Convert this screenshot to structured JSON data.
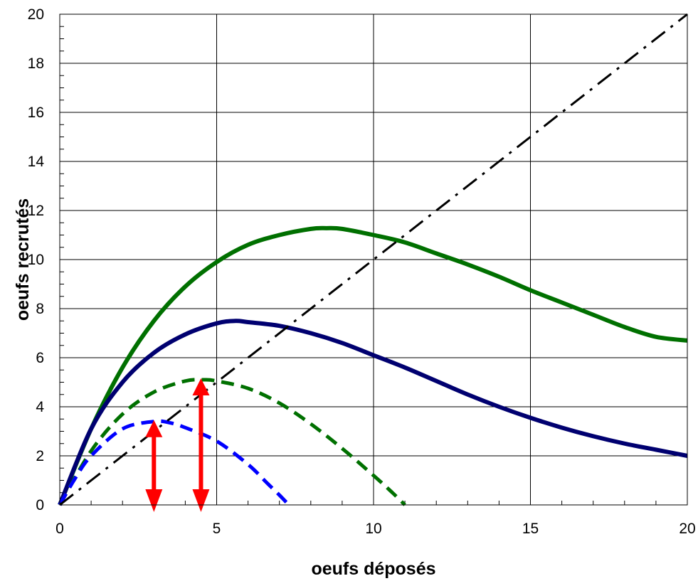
{
  "chart_data": {
    "type": "line",
    "title": "",
    "xlabel": "oeufs déposés",
    "ylabel": "oeufs recrutés",
    "xlim": [
      0,
      20
    ],
    "ylim": [
      0,
      20
    ],
    "x_ticks": [
      0,
      5,
      10,
      15,
      20
    ],
    "y_ticks": [
      0,
      2,
      4,
      6,
      8,
      10,
      12,
      14,
      16,
      18,
      20
    ],
    "grid": true,
    "legend": "none",
    "series": [
      {
        "style": "solid",
        "color": "#007000",
        "points": [
          [
            0,
            0
          ],
          [
            1,
            3.1
          ],
          [
            2,
            5.6
          ],
          [
            3,
            7.5
          ],
          [
            4,
            8.9
          ],
          [
            5,
            9.9
          ],
          [
            6,
            10.6
          ],
          [
            7,
            11.0
          ],
          [
            8,
            11.25
          ],
          [
            8.5,
            11.28
          ],
          [
            9,
            11.25
          ],
          [
            10,
            11.0
          ],
          [
            11,
            10.7
          ],
          [
            12,
            10.25
          ],
          [
            13,
            9.8
          ],
          [
            14,
            9.3
          ],
          [
            15,
            8.75
          ],
          [
            16,
            8.25
          ],
          [
            17,
            7.75
          ],
          [
            18,
            7.25
          ],
          [
            19,
            6.85
          ],
          [
            20,
            6.7
          ]
        ]
      },
      {
        "style": "solid",
        "color": "#000070",
        "points": [
          [
            0,
            0
          ],
          [
            1,
            3.1
          ],
          [
            2,
            5.0
          ],
          [
            3,
            6.2
          ],
          [
            4,
            6.95
          ],
          [
            5,
            7.4
          ],
          [
            5.6,
            7.5
          ],
          [
            6,
            7.45
          ],
          [
            7,
            7.3
          ],
          [
            8,
            7.0
          ],
          [
            9,
            6.6
          ],
          [
            10,
            6.1
          ],
          [
            11,
            5.6
          ],
          [
            12,
            5.05
          ],
          [
            13,
            4.5
          ],
          [
            14,
            4.0
          ],
          [
            15,
            3.55
          ],
          [
            16,
            3.15
          ],
          [
            17,
            2.8
          ],
          [
            18,
            2.5
          ],
          [
            19,
            2.25
          ],
          [
            20,
            2.0
          ]
        ]
      },
      {
        "style": "dashed",
        "color": "#007000",
        "points": [
          [
            0,
            0
          ],
          [
            1,
            2.2
          ],
          [
            2,
            3.7
          ],
          [
            3,
            4.6
          ],
          [
            4,
            5.05
          ],
          [
            4.6,
            5.1
          ],
          [
            5,
            5.05
          ],
          [
            6,
            4.75
          ],
          [
            7,
            4.15
          ],
          [
            8,
            3.3
          ],
          [
            9,
            2.3
          ],
          [
            10,
            1.2
          ],
          [
            10.6,
            0.5
          ],
          [
            11,
            0
          ]
        ]
      },
      {
        "style": "dashed",
        "color": "#0000FF",
        "points": [
          [
            0,
            0
          ],
          [
            0.5,
            1.1
          ],
          [
            1,
            2.0
          ],
          [
            2,
            3.1
          ],
          [
            3,
            3.4
          ],
          [
            3.5,
            3.35
          ],
          [
            4,
            3.15
          ],
          [
            5,
            2.6
          ],
          [
            6,
            1.65
          ],
          [
            6.6,
            0.9
          ],
          [
            7,
            0.4
          ],
          [
            7.3,
            0
          ]
        ]
      },
      {
        "style": "dash-dot",
        "color": "#000000",
        "points": [
          [
            0,
            0
          ],
          [
            20,
            20
          ]
        ]
      }
    ],
    "annotations": [
      {
        "type": "double-arrow",
        "color": "#FF0000",
        "x": 3.0,
        "y_from": 0,
        "y_to": 3.4
      },
      {
        "type": "double-arrow",
        "color": "#FF0000",
        "x": 4.5,
        "y_from": 0,
        "y_to": 5.1
      }
    ]
  }
}
